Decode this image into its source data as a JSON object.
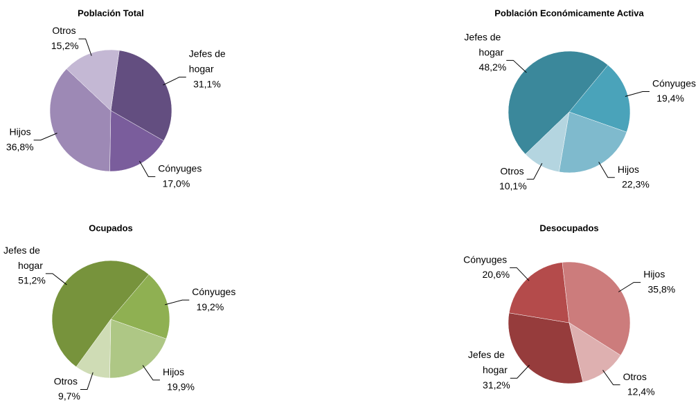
{
  "chart_data": [
    {
      "type": "pie",
      "title": "Población Total",
      "categories": [
        "Jefes de hogar",
        "Cónyuges",
        "Hijos",
        "Otros"
      ],
      "values": [
        31.1,
        17.0,
        36.8,
        15.2
      ],
      "value_labels": [
        "31,1%",
        "17,0%",
        "36,8%",
        "15,2%"
      ],
      "colors": [
        "#634e80",
        "#7a5d9c",
        "#9d89b5",
        "#c4b8d4"
      ]
    },
    {
      "type": "pie",
      "title": "Población Económicamente Activa",
      "categories": [
        "Jefes de hogar",
        "Cónyuges",
        "Hijos",
        "Otros"
      ],
      "values": [
        48.2,
        19.4,
        22.3,
        10.1
      ],
      "value_labels": [
        "48,2%",
        "19,4%",
        "22,3%",
        "10,1%"
      ],
      "colors": [
        "#3b889b",
        "#4aa3ba",
        "#7fbacd",
        "#b4d5e0"
      ]
    },
    {
      "type": "pie",
      "title": "Ocupados",
      "categories": [
        "Jefes de hogar",
        "Cónyuges",
        "Hijos",
        "Otros"
      ],
      "values": [
        51.2,
        19.2,
        19.9,
        9.7
      ],
      "value_labels": [
        "51,2%",
        "19,2%",
        "19,9%",
        "9,7%"
      ],
      "colors": [
        "#77933c",
        "#8fb052",
        "#aec785",
        "#cfdcb5"
      ]
    },
    {
      "type": "pie",
      "title": "Desocupados",
      "categories": [
        "Jefes de hogar",
        "Cónyuges",
        "Hijos",
        "Otros"
      ],
      "values": [
        31.2,
        20.6,
        35.8,
        12.4
      ],
      "value_labels": [
        "31,2%",
        "20,6%",
        "35,8%",
        "12,4%"
      ],
      "colors": [
        "#963c3c",
        "#b44b4b",
        "#cc7c7c",
        "#deb0b0"
      ]
    }
  ]
}
